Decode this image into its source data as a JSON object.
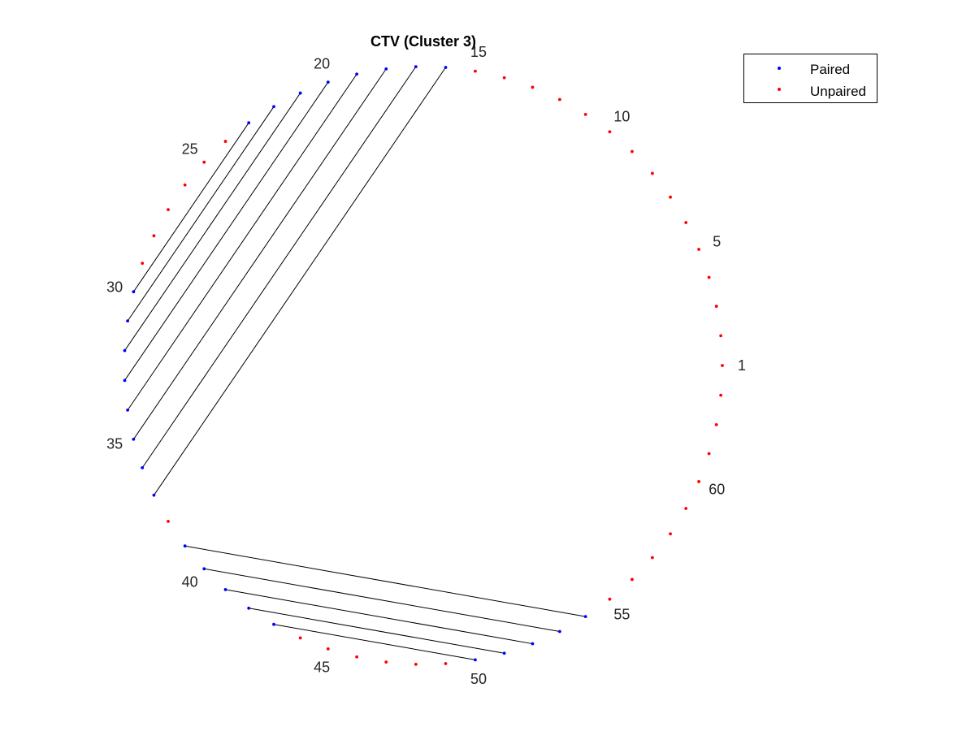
{
  "chart_data": {
    "type": "circular-arc-diagram",
    "title": "CTV (Cluster 3)",
    "n_positions": 63,
    "start_position": 1,
    "direction": "counterclockwise",
    "position_labels": [
      1,
      5,
      10,
      15,
      20,
      25,
      30,
      35,
      40,
      45,
      50,
      55,
      60
    ],
    "pairs": [
      [
        16,
        37
      ],
      [
        17,
        36
      ],
      [
        18,
        35
      ],
      [
        19,
        34
      ],
      [
        20,
        33
      ],
      [
        21,
        32
      ],
      [
        22,
        31
      ],
      [
        23,
        30
      ],
      [
        39,
        54
      ],
      [
        40,
        53
      ],
      [
        41,
        52
      ],
      [
        42,
        51
      ],
      [
        43,
        50
      ]
    ],
    "legend": {
      "placement": "top-right",
      "entries": [
        {
          "key": "paired",
          "label": "Paired",
          "color": "#0000ff"
        },
        {
          "key": "unpaired",
          "label": "Unpaired",
          "color": "#ff0000"
        }
      ]
    },
    "colors": {
      "paired": "#0000ff",
      "unpaired": "#ff0000",
      "link": "#000000"
    }
  }
}
